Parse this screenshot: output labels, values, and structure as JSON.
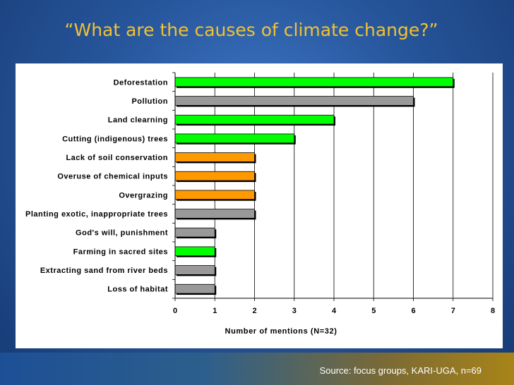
{
  "slide": {
    "title": "“What are the causes of climate change?”",
    "source": "Source: focus groups, KARI-UGA, n=69"
  },
  "colors": {
    "green": "#00ff00",
    "gray": "#999999",
    "orange": "#ff9900"
  },
  "chart_data": {
    "type": "bar",
    "orientation": "horizontal",
    "title": "",
    "xlabel": "Number of mentions (N=32)",
    "ylabel": "",
    "xlim": [
      0,
      8
    ],
    "x_ticks": [
      "0",
      "1",
      "2",
      "3",
      "4",
      "5",
      "6",
      "7",
      "8"
    ],
    "grid": "vertical",
    "legend": "none",
    "categories": [
      "Deforestation",
      "Pollution",
      "Land clearning",
      "Cutting (indigenous) trees",
      "Lack of soil conservation",
      "Overuse of chemical inputs",
      "Overgrazing",
      "Planting exotic, inappropriate trees",
      "God's will, punishment",
      "Farming in sacred sites",
      "Extracting sand from river beds",
      "Loss of habitat"
    ],
    "values": [
      7,
      6,
      4,
      3,
      2,
      2,
      2,
      2,
      1,
      1,
      1,
      1
    ],
    "bar_colors": [
      "green",
      "gray",
      "green",
      "green",
      "orange",
      "orange",
      "orange",
      "gray",
      "gray",
      "green",
      "gray",
      "gray"
    ]
  }
}
